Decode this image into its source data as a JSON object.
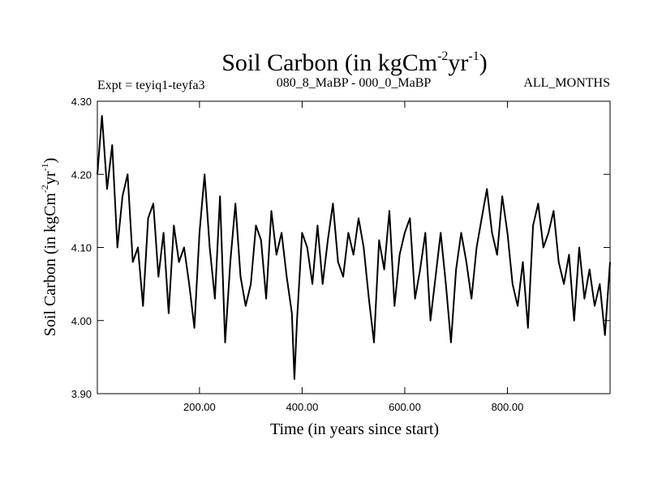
{
  "chart_data": {
    "type": "line",
    "title": "Soil Carbon (in kgCm",
    "title_exp1": "-2",
    "title_mid": "yr",
    "title_exp2": "-1",
    "title_close": ")",
    "experiment_label": "Expt = teyiq1-teyfa3",
    "period_label": "080_8_MaBP - 000_0_MaBP",
    "months_label": "ALL_MONTHS",
    "xlabel": "Time (in years since start)",
    "ylabel": "Soil Carbon (in kgCm",
    "ylabel_exp1": "-2",
    "ylabel_mid": "yr",
    "ylabel_exp2": "-1",
    "ylabel_close": ")",
    "xlim": [
      1,
      1000
    ],
    "ylim": [
      3.9,
      4.3
    ],
    "xticks": [
      200,
      400,
      600,
      800
    ],
    "xtick_labels": [
      "200.00",
      "400.00",
      "600.00",
      "800.00"
    ],
    "yticks": [
      3.9,
      4.0,
      4.1,
      4.2,
      4.3
    ],
    "ytick_labels": [
      "3.90",
      "4.00",
      "4.10",
      "4.20",
      "4.30"
    ],
    "series": [
      {
        "name": "Soil Carbon",
        "color": "#000000",
        "x": [
          1,
          10,
          20,
          30,
          40,
          50,
          60,
          70,
          80,
          90,
          100,
          110,
          120,
          130,
          140,
          150,
          160,
          170,
          180,
          190,
          200,
          210,
          220,
          230,
          240,
          250,
          260,
          270,
          280,
          290,
          300,
          310,
          320,
          330,
          340,
          350,
          360,
          370,
          380,
          385,
          390,
          400,
          410,
          420,
          430,
          440,
          450,
          460,
          470,
          480,
          490,
          500,
          510,
          520,
          530,
          540,
          550,
          560,
          570,
          580,
          590,
          600,
          610,
          620,
          630,
          640,
          650,
          660,
          670,
          680,
          690,
          700,
          710,
          720,
          730,
          740,
          750,
          760,
          770,
          780,
          790,
          800,
          810,
          820,
          830,
          840,
          850,
          860,
          870,
          880,
          890,
          900,
          910,
          920,
          930,
          940,
          950,
          960,
          970,
          980,
          990,
          1000
        ],
        "y": [
          4.2,
          4.28,
          4.18,
          4.24,
          4.1,
          4.17,
          4.2,
          4.08,
          4.1,
          4.02,
          4.14,
          4.16,
          4.06,
          4.12,
          4.01,
          4.13,
          4.08,
          4.1,
          4.05,
          3.99,
          4.12,
          4.2,
          4.1,
          4.03,
          4.17,
          3.97,
          4.08,
          4.16,
          4.06,
          4.02,
          4.05,
          4.13,
          4.11,
          4.03,
          4.15,
          4.09,
          4.12,
          4.06,
          4.01,
          3.92,
          4.0,
          4.12,
          4.1,
          4.05,
          4.13,
          4.05,
          4.11,
          4.16,
          4.08,
          4.06,
          4.12,
          4.09,
          4.14,
          4.1,
          4.03,
          3.97,
          4.11,
          4.07,
          4.15,
          4.02,
          4.09,
          4.12,
          4.14,
          4.03,
          4.07,
          4.12,
          4.0,
          4.06,
          4.12,
          4.05,
          3.97,
          4.07,
          4.12,
          4.08,
          4.03,
          4.1,
          4.14,
          4.18,
          4.12,
          4.09,
          4.17,
          4.12,
          4.05,
          4.02,
          4.08,
          3.99,
          4.13,
          4.16,
          4.1,
          4.12,
          4.15,
          4.08,
          4.05,
          4.09,
          4.0,
          4.1,
          4.03,
          4.07,
          4.02,
          4.05,
          3.98,
          4.08
        ]
      }
    ]
  }
}
